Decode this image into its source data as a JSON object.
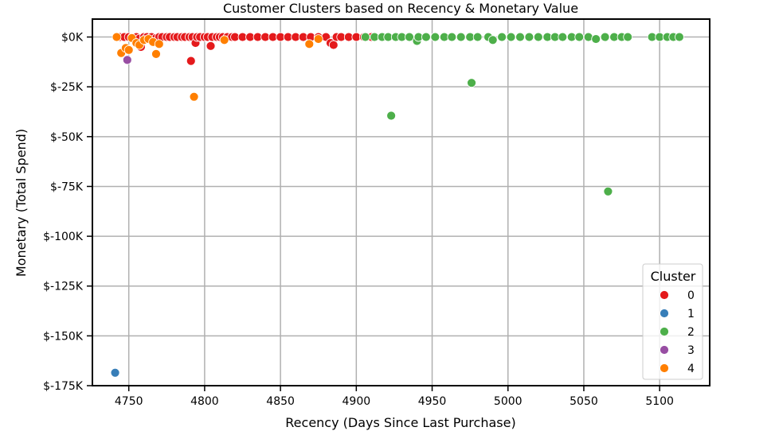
{
  "chart_data": {
    "type": "scatter",
    "title": "Customer Clusters based on Recency & Monetary Value",
    "xlabel": "Recency (Days Since Last Purchase)",
    "ylabel": "Monetary (Total Spend)",
    "xlim": [
      4726,
      5133
    ],
    "ylim": [
      -175000,
      9000
    ],
    "xticks": [
      4750,
      4800,
      4850,
      4900,
      4950,
      5000,
      5050,
      5100
    ],
    "yticks": [
      0,
      -25000,
      -50000,
      -75000,
      -100000,
      -125000,
      -150000,
      -175000
    ],
    "ytick_labels": [
      "$0K",
      "$-25K",
      "$-50K",
      "$-75K",
      "$-100K",
      "$-125K",
      "$-150K",
      "$-175K"
    ],
    "grid": true,
    "legend": {
      "title": "Cluster",
      "placement": "bottom-right"
    },
    "series": [
      {
        "name": "0",
        "color": "#e41a1c",
        "points": [
          [
            4744,
            0
          ],
          [
            4747,
            0
          ],
          [
            4750,
            0
          ],
          [
            4752,
            -300
          ],
          [
            4755,
            0
          ],
          [
            4757,
            -800
          ],
          [
            4758,
            -5000
          ],
          [
            4760,
            0
          ],
          [
            4762,
            0
          ],
          [
            4765,
            0
          ],
          [
            4768,
            -500
          ],
          [
            4770,
            0
          ],
          [
            4772,
            0
          ],
          [
            4775,
            0
          ],
          [
            4777,
            0
          ],
          [
            4780,
            0
          ],
          [
            4782,
            0
          ],
          [
            4785,
            0
          ],
          [
            4787,
            0
          ],
          [
            4790,
            0
          ],
          [
            4791,
            -12000
          ],
          [
            4792,
            0
          ],
          [
            4794,
            -3000
          ],
          [
            4795,
            0
          ],
          [
            4797,
            0
          ],
          [
            4800,
            0
          ],
          [
            4802,
            0
          ],
          [
            4804,
            -4500
          ],
          [
            4805,
            0
          ],
          [
            4808,
            0
          ],
          [
            4810,
            0
          ],
          [
            4812,
            0
          ],
          [
            4815,
            0
          ],
          [
            4818,
            0
          ],
          [
            4820,
            0
          ],
          [
            4825,
            0
          ],
          [
            4830,
            0
          ],
          [
            4835,
            0
          ],
          [
            4840,
            0
          ],
          [
            4845,
            0
          ],
          [
            4850,
            0
          ],
          [
            4855,
            0
          ],
          [
            4860,
            0
          ],
          [
            4865,
            0
          ],
          [
            4870,
            0
          ],
          [
            4875,
            0
          ],
          [
            4880,
            0
          ],
          [
            4883,
            -3000
          ],
          [
            4885,
            -4000
          ],
          [
            4887,
            0
          ],
          [
            4890,
            0
          ],
          [
            4895,
            0
          ],
          [
            4900,
            0
          ],
          [
            4905,
            0
          ],
          [
            4910,
            0
          ]
        ]
      },
      {
        "name": "1",
        "color": "#377eb8",
        "points": [
          [
            4741,
            -168500
          ]
        ]
      },
      {
        "name": "2",
        "color": "#4daf4a",
        "points": [
          [
            4906,
            0
          ],
          [
            4912,
            0
          ],
          [
            4917,
            0
          ],
          [
            4921,
            0
          ],
          [
            4926,
            0
          ],
          [
            4930,
            0
          ],
          [
            4935,
            0
          ],
          [
            4940,
            -2000
          ],
          [
            4941,
            0
          ],
          [
            4946,
            0
          ],
          [
            4952,
            0
          ],
          [
            4958,
            0
          ],
          [
            4963,
            0
          ],
          [
            4969,
            0
          ],
          [
            4975,
            0
          ],
          [
            4980,
            0
          ],
          [
            4987,
            0
          ],
          [
            4990,
            -1500
          ],
          [
            4996,
            0
          ],
          [
            5002,
            0
          ],
          [
            5008,
            0
          ],
          [
            5014,
            0
          ],
          [
            5020,
            0
          ],
          [
            5026,
            0
          ],
          [
            5031,
            0
          ],
          [
            5036,
            0
          ],
          [
            5042,
            0
          ],
          [
            5047,
            0
          ],
          [
            5053,
            0
          ],
          [
            5058,
            -1000
          ],
          [
            5064,
            0
          ],
          [
            5070,
            0
          ],
          [
            5075,
            0
          ],
          [
            5079,
            0
          ],
          [
            5095,
            0
          ],
          [
            5100,
            0
          ],
          [
            5105,
            0
          ],
          [
            5109,
            0
          ],
          [
            5113,
            0
          ],
          [
            4923,
            -39500
          ],
          [
            4976,
            -23000
          ],
          [
            5066,
            -77500
          ]
        ]
      },
      {
        "name": "3",
        "color": "#984ea3",
        "points": [
          [
            4749,
            -11500
          ]
        ]
      },
      {
        "name": "4",
        "color": "#ff7f00",
        "points": [
          [
            4742,
            0
          ],
          [
            4745,
            -8000
          ],
          [
            4748,
            -5500
          ],
          [
            4750,
            -6500
          ],
          [
            4752,
            -500
          ],
          [
            4755,
            -3000
          ],
          [
            4757,
            -4000
          ],
          [
            4760,
            -1500
          ],
          [
            4763,
            -1000
          ],
          [
            4766,
            -2500
          ],
          [
            4768,
            -8500
          ],
          [
            4770,
            -3500
          ],
          [
            4793,
            -30000
          ],
          [
            4813,
            -1500
          ],
          [
            4869,
            -3500
          ],
          [
            4875,
            -1000
          ]
        ]
      }
    ]
  }
}
